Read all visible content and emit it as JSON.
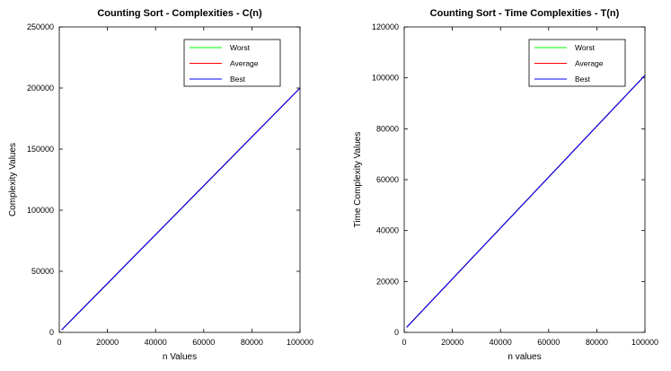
{
  "chart_data": [
    {
      "type": "line",
      "title": "Counting Sort - Complexities - C(n)",
      "xlabel": "n Values",
      "ylabel": "Complexity Values",
      "xlim": [
        0,
        100000
      ],
      "ylim": [
        0,
        250000
      ],
      "xticks": [
        0,
        20000,
        40000,
        60000,
        80000,
        100000
      ],
      "yticks": [
        0,
        50000,
        100000,
        150000,
        200000,
        250000
      ],
      "legend_position": "top-right",
      "grid": false,
      "series": [
        {
          "name": "Worst",
          "color": "#00ff00",
          "x": [
            1000,
            100000
          ],
          "y": [
            2000,
            200000
          ]
        },
        {
          "name": "Average",
          "color": "#ff0000",
          "x": [
            1000,
            100000
          ],
          "y": [
            2000,
            200000
          ]
        },
        {
          "name": "Best",
          "color": "#0000ff",
          "x": [
            1000,
            100000
          ],
          "y": [
            2000,
            200000
          ]
        }
      ]
    },
    {
      "type": "line",
      "title": "Counting Sort - Time Complexities - T(n)",
      "xlabel": "n values",
      "ylabel": "Time Complexity Values",
      "xlim": [
        0,
        100000
      ],
      "ylim": [
        0,
        120000
      ],
      "xticks": [
        0,
        20000,
        40000,
        60000,
        80000,
        100000
      ],
      "yticks": [
        0,
        20000,
        40000,
        60000,
        80000,
        100000,
        120000
      ],
      "legend_position": "top-right",
      "grid": false,
      "series": [
        {
          "name": "Worst",
          "color": "#00ff00",
          "x": [
            1000,
            100000
          ],
          "y": [
            2000,
            101000
          ]
        },
        {
          "name": "Average",
          "color": "#ff0000",
          "x": [
            1000,
            100000
          ],
          "y": [
            2000,
            101000
          ]
        },
        {
          "name": "Best",
          "color": "#0000ff",
          "x": [
            1000,
            100000
          ],
          "y": [
            2000,
            101000
          ]
        }
      ]
    }
  ]
}
